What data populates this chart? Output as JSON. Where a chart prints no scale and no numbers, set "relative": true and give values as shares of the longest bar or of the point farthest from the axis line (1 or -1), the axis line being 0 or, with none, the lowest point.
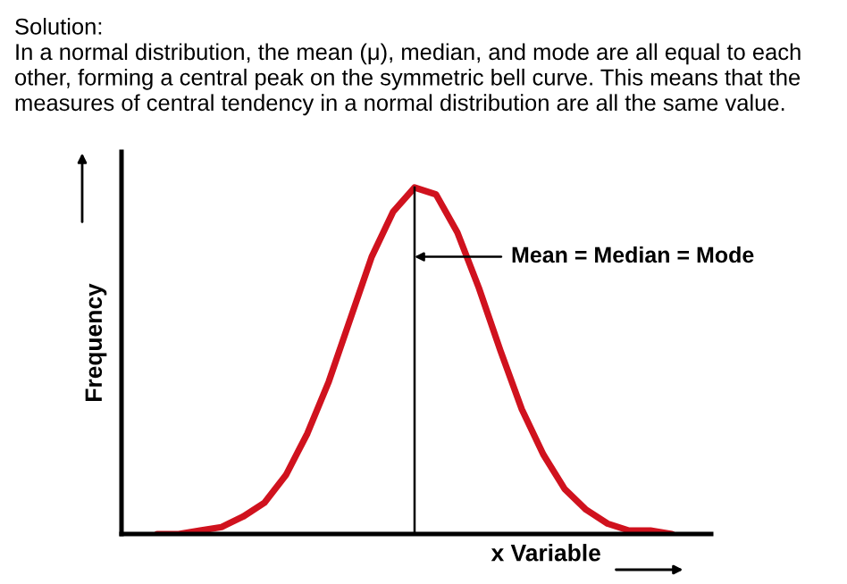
{
  "chart_data": {
    "type": "line",
    "relative": true,
    "xlabel": "x Variable",
    "ylabel": "Frequency",
    "categories": [
      null,
      null,
      null,
      null,
      null,
      null,
      null,
      null,
      null,
      null,
      null,
      null,
      null,
      null,
      null,
      null,
      null,
      null,
      null,
      null,
      null,
      null,
      null,
      null,
      null
    ],
    "series": [
      {
        "color": "#d0121e",
        "values": [
          0.0,
          0.0,
          0.01,
          0.02,
          0.05,
          0.09,
          0.17,
          0.29,
          0.44,
          0.62,
          0.8,
          0.93,
          1.0,
          0.98,
          0.87,
          0.71,
          0.53,
          0.36,
          0.23,
          0.13,
          0.07,
          0.03,
          0.01,
          0.01,
          0.0
        ]
      }
    ],
    "marker": "none",
    "line_style": "solid",
    "grid": false,
    "legend": false,
    "tick_labels": false,
    "annotations": [
      "Solution:\nIn a normal distribution, the mean (μ), median, and mode are all equal to each other, forming a central peak on the symmetric bell curve. This means that the measures of central tendency in a normal distribution are all the same value.",
      {
        "text": "Mean = Median = Mode"
      }
    ]
  }
}
